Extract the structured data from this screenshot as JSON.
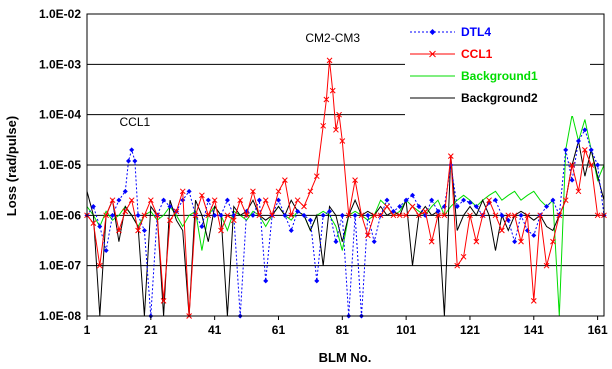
{
  "chart_data": {
    "type": "line",
    "xlabel": "BLM No.",
    "ylabel": "Loss (rad/pulse)",
    "yscale": "log",
    "xlim": [
      1,
      163
    ],
    "ylim": [
      1e-08,
      0.01
    ],
    "x_ticks": [
      "1",
      "21",
      "41",
      "61",
      "81",
      "101",
      "121",
      "141",
      "161"
    ],
    "y_ticks": [
      "1.0E-08",
      "1.0E-07",
      "1.0E-06",
      "1.0E-05",
      "1.0E-04",
      "1.0E-03",
      "1.0E-02"
    ],
    "grid": "horizontal",
    "legend_placement": "top-right",
    "annotations": [
      {
        "text": "CCL1",
        "x": 16,
        "y": 6e-05
      },
      {
        "text": "CM2-CM3",
        "x": 78,
        "y": 0.0028
      }
    ],
    "series": [
      {
        "name": "DTL4",
        "color": "#0000FF",
        "style": "dotted-diamond",
        "x": [
          1,
          3,
          5,
          7,
          9,
          11,
          13,
          14,
          15,
          16,
          17,
          19,
          21,
          23,
          25,
          27,
          29,
          31,
          33,
          35,
          37,
          39,
          41,
          43,
          45,
          47,
          49,
          51,
          53,
          55,
          57,
          59,
          61,
          63,
          65,
          67,
          69,
          71,
          73,
          75,
          77,
          79,
          81,
          83,
          85,
          87,
          89,
          91,
          93,
          95,
          97,
          99,
          101,
          103,
          105,
          107,
          109,
          111,
          113,
          115,
          117,
          119,
          121,
          123,
          125,
          127,
          129,
          131,
          133,
          135,
          137,
          139,
          141,
          143,
          145,
          147,
          149,
          151,
          153,
          155,
          157,
          159,
          161,
          163
        ],
        "y": [
          1e-06,
          1.5e-06,
          6e-07,
          2e-07,
          1e-06,
          2e-06,
          3e-06,
          1.2e-05,
          2e-05,
          1.2e-05,
          1e-06,
          5e-07,
          1e-08,
          1e-06,
          2e-06,
          1.5e-06,
          1.2e-06,
          2e-06,
          3e-06,
          1e-06,
          6e-07,
          2e-06,
          1e-06,
          1e-06,
          2e-06,
          1e-06,
          1e-08,
          1.2e-06,
          1e-06,
          2e-06,
          5e-08,
          1e-06,
          2e-06,
          1e-06,
          5e-07,
          1.2e-06,
          1e-06,
          8e-07,
          5e-08,
          1e-06,
          1.2e-06,
          3e-07,
          1e-06,
          1e-08,
          1e-06,
          1e-08,
          1e-06,
          3e-07,
          1e-06,
          2e-06,
          1.2e-06,
          1.5e-06,
          2e-06,
          2.5e-06,
          1.5e-06,
          1e-06,
          2e-06,
          1.2e-06,
          1.5e-06,
          1e-05,
          1.5e-06,
          2e-06,
          1.8e-06,
          1.5e-06,
          1e-06,
          1.8e-06,
          2e-06,
          1e-06,
          8e-07,
          3e-07,
          1e-06,
          5e-07,
          4e-07,
          1e-06,
          1.5e-06,
          2e-06,
          1e-06,
          2e-05,
          5e-06,
          3e-05,
          5e-05,
          2e-05,
          1e-05,
          1e-06
        ]
      },
      {
        "name": "CCL1",
        "color": "#FF0000",
        "style": "solid-x",
        "x": [
          1,
          3,
          5,
          7,
          9,
          11,
          13,
          15,
          17,
          19,
          21,
          23,
          25,
          27,
          29,
          31,
          33,
          35,
          37,
          39,
          41,
          43,
          45,
          47,
          49,
          51,
          53,
          55,
          57,
          59,
          61,
          63,
          65,
          67,
          69,
          71,
          73,
          75,
          76,
          77,
          78,
          79,
          80,
          81,
          83,
          85,
          87,
          89,
          91,
          93,
          95,
          97,
          99,
          101,
          103,
          105,
          107,
          109,
          111,
          113,
          115,
          117,
          119,
          121,
          123,
          125,
          127,
          129,
          131,
          133,
          135,
          137,
          139,
          141,
          143,
          145,
          147,
          149,
          151,
          153,
          155,
          157,
          159,
          161,
          163
        ],
        "y": [
          1e-06,
          7e-07,
          1e-07,
          1e-06,
          2e-06,
          5e-07,
          1.2e-06,
          2e-06,
          5e-07,
          1e-06,
          2e-06,
          1e-06,
          2e-08,
          8e-07,
          1.2e-06,
          3e-06,
          1e-08,
          1e-06,
          2.5e-06,
          1e-06,
          2e-06,
          5e-07,
          1e-06,
          8e-07,
          2e-06,
          1e-06,
          3e-06,
          1e-06,
          2e-06,
          1e-06,
          3e-06,
          5e-06,
          1e-06,
          2e-06,
          1.5e-06,
          3e-06,
          6e-06,
          6e-05,
          0.0002,
          0.0012,
          0.0003,
          5e-05,
          0.0001,
          3e-05,
          1e-06,
          5e-06,
          1e-06,
          4e-07,
          1e-06,
          1e-06,
          1.5e-06,
          1e-06,
          1e-06,
          1e-06,
          1.5e-06,
          1e-06,
          1.2e-06,
          3e-07,
          1e-06,
          1e-06,
          1.5e-05,
          1e-07,
          1.5e-07,
          1e-06,
          3e-07,
          1e-06,
          2e-06,
          1e-06,
          5e-07,
          1e-06,
          1e-06,
          3e-07,
          1e-06,
          2e-08,
          1e-06,
          1e-07,
          3e-07,
          1e-06,
          2e-06,
          1e-05,
          3e-06,
          2e-05,
          1e-05,
          1e-06,
          1e-06
        ]
      },
      {
        "name": "Background1",
        "color": "#00DD00",
        "style": "solid",
        "x": [
          1,
          3,
          5,
          7,
          9,
          11,
          13,
          15,
          17,
          19,
          21,
          23,
          25,
          27,
          29,
          31,
          33,
          35,
          37,
          39,
          41,
          43,
          45,
          47,
          49,
          51,
          53,
          55,
          57,
          59,
          61,
          63,
          65,
          67,
          69,
          71,
          73,
          75,
          77,
          79,
          81,
          83,
          85,
          87,
          89,
          91,
          93,
          95,
          97,
          99,
          101,
          103,
          105,
          107,
          109,
          111,
          113,
          115,
          117,
          119,
          121,
          123,
          125,
          127,
          129,
          131,
          133,
          135,
          137,
          139,
          141,
          143,
          145,
          147,
          149,
          151,
          153,
          155,
          157,
          159,
          161,
          163
        ],
        "y": [
          1.5e-06,
          1e-06,
          6e-07,
          1.2e-06,
          8e-07,
          1e-06,
          1.5e-06,
          1e-06,
          6e-07,
          1e-06,
          1.2e-06,
          8e-07,
          1e-06,
          1.5e-06,
          1e-06,
          6e-07,
          1e-06,
          1.2e-06,
          2e-07,
          1e-06,
          1.5e-06,
          1e-06,
          5e-07,
          1.2e-06,
          1e-06,
          8e-07,
          1.2e-06,
          1e-06,
          6e-07,
          1e-06,
          1.5e-06,
          1e-06,
          8e-07,
          1.2e-06,
          1e-06,
          5e-07,
          1e-06,
          1.2e-06,
          1e-06,
          6e-07,
          2e-07,
          1e-06,
          1.2e-06,
          1e-06,
          8e-07,
          1e-06,
          2e-06,
          1.5e-06,
          1e-06,
          1.2e-06,
          2e-06,
          1.5e-06,
          1.2e-06,
          1e-06,
          1.5e-06,
          2e-06,
          1e-06,
          1.5e-06,
          2e-06,
          2.5e-06,
          2e-06,
          1.5e-06,
          2e-06,
          2.5e-06,
          3e-06,
          2e-06,
          2.5e-06,
          3e-06,
          2e-06,
          2.5e-06,
          3e-06,
          2e-06,
          1.5e-06,
          2e-06,
          1e-08,
          2e-05,
          0.0001,
          3e-05,
          8e-05,
          2e-05,
          5e-06,
          1e-05
        ]
      },
      {
        "name": "Background2",
        "color": "#000000",
        "style": "solid",
        "x": [
          1,
          3,
          5,
          7,
          9,
          11,
          13,
          15,
          17,
          19,
          21,
          23,
          25,
          27,
          29,
          31,
          33,
          35,
          37,
          39,
          41,
          43,
          45,
          47,
          49,
          51,
          53,
          55,
          57,
          59,
          61,
          63,
          65,
          67,
          69,
          71,
          73,
          75,
          77,
          79,
          81,
          83,
          85,
          87,
          89,
          91,
          93,
          95,
          97,
          99,
          101,
          103,
          105,
          107,
          109,
          111,
          113,
          115,
          117,
          119,
          121,
          123,
          125,
          127,
          129,
          131,
          133,
          135,
          137,
          139,
          141,
          143,
          145,
          147,
          149,
          151,
          153,
          155,
          157,
          159,
          161,
          163
        ],
        "y": [
          3e-06,
          1e-06,
          1e-08,
          1e-06,
          2e-06,
          3e-07,
          1.5e-06,
          1e-06,
          6e-07,
          1e-08,
          1.5e-06,
          1e-06,
          1e-08,
          2e-06,
          8e-07,
          5e-07,
          1e-08,
          2e-06,
          1e-06,
          3e-07,
          1.5e-06,
          1e-06,
          1e-08,
          1.5e-06,
          1e-06,
          1.2e-06,
          2e-06,
          1e-06,
          8e-07,
          1e-06,
          1.5e-06,
          1e-06,
          2e-06,
          1.2e-06,
          1e-06,
          5e-07,
          1e-06,
          1e-07,
          1.5e-06,
          1e-06,
          3e-07,
          1e-06,
          2e-06,
          1e-06,
          1.2e-06,
          1e-06,
          1.5e-06,
          1e-06,
          1.2e-06,
          1e-06,
          2e-06,
          1e-07,
          1e-06,
          1.5e-06,
          1e-06,
          1.2e-06,
          1e-08,
          1.5e-05,
          5e-07,
          1e-06,
          1.5e-06,
          1e-06,
          2e-06,
          1e-06,
          2e-07,
          1e-06,
          5e-07,
          1e-06,
          1.2e-06,
          1e-06,
          8e-07,
          1e-06,
          6e-07,
          5e-07,
          1e-06,
          2e-06,
          1e-05,
          3e-05,
          6e-06,
          2e-05,
          6e-06,
          2e-06
        ]
      }
    ]
  }
}
